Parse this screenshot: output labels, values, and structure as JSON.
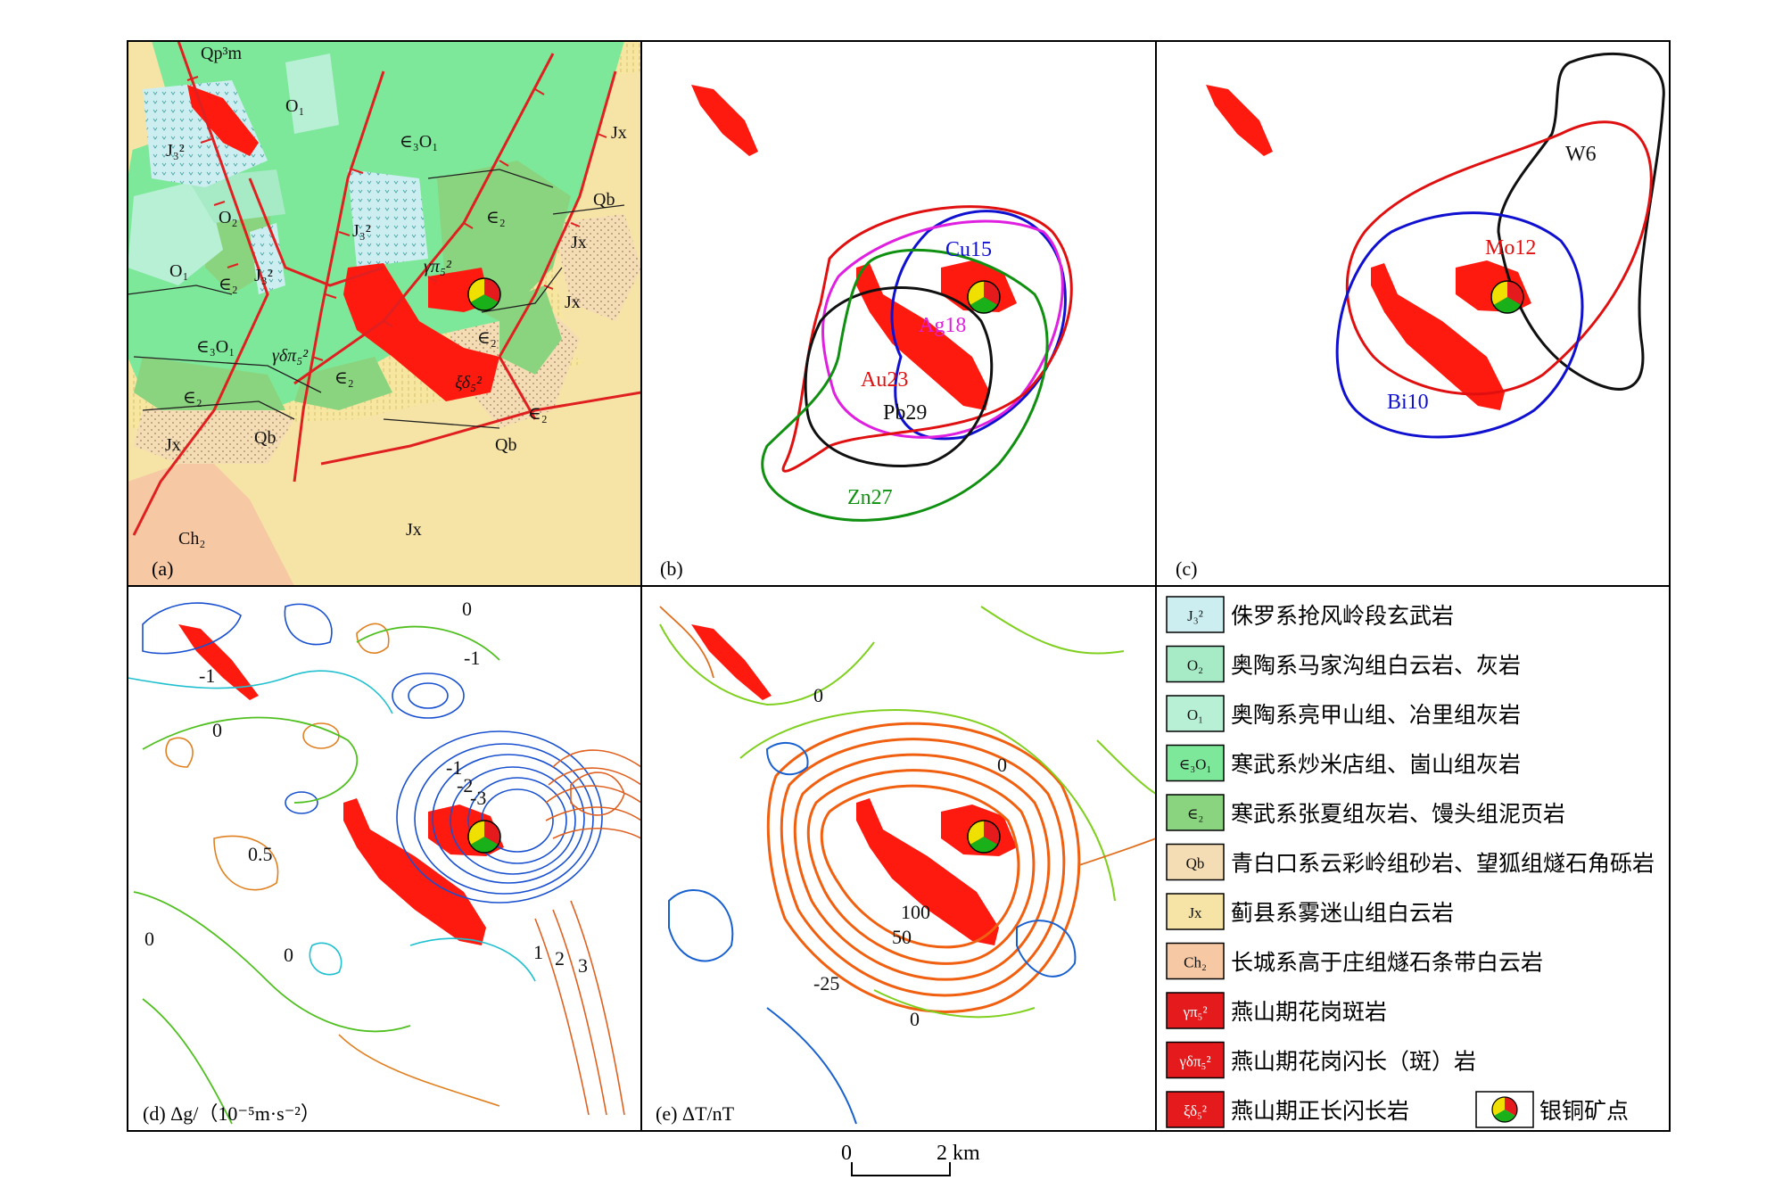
{
  "panels": {
    "a": {
      "label": "(a)"
    },
    "b": {
      "label": "(b)"
    },
    "c": {
      "label": "(c)"
    },
    "d": {
      "label": "(d) Δg/（10⁻⁵m·s⁻²）"
    },
    "e": {
      "label": "(e) ΔT/nT"
    }
  },
  "geology_units": {
    "qp3m": "Qp³m",
    "o1_top": "O₁",
    "o1_left": "O₁",
    "j32_left": "J₃²",
    "j32_mid": "J₃²",
    "j32_small": "J₃²",
    "o2": "O₂",
    "e2_mid": "∈₂",
    "e2_right": "∈₂",
    "e2_far": "∈₂",
    "e2_low": "∈₂",
    "e2_bottom": "∈₂",
    "e2_lower_right": "∈₂",
    "e2_center": "∈₂",
    "e3o1_top": "∈₃O₁",
    "e3o1_left": "∈₃O₁",
    "gamma_pi": "γπ₅²",
    "gamma_delta_pi": "γδπ₅²",
    "xi_delta": "ξδ₅²",
    "jx_top": "Jx",
    "jx_mid": "Jx",
    "jx_small": "Jx",
    "jx_left": "Jx",
    "jx_bottom": "Jx",
    "qb_top": "Qb",
    "qb_left": "Qb",
    "qb_bottom": "Qb",
    "ch2": "Ch₂"
  },
  "anomalies_b": {
    "cu": "Cu15",
    "ag": "Ag18",
    "au": "Au23",
    "pb": "Pb29",
    "zn": "Zn27"
  },
  "anomalies_c": {
    "w": "W6",
    "mo": "Mo12",
    "bi": "Bi10"
  },
  "contours_d": {
    "l0_top": "0",
    "lneg1_left": "-1",
    "lneg1_right": "-1",
    "l0_left": "0",
    "lneg1_center": "-1",
    "lneg2": "-2",
    "lneg3": "-3",
    "l05": "0.5",
    "l0_bottom": "0",
    "l0_far": "0",
    "l1": "1",
    "l2": "2",
    "l3": "3"
  },
  "contours_e": {
    "l0_top": "0",
    "l0_mid": "0",
    "l100": "100",
    "l50": "50",
    "lneg25": "-25",
    "l0_bottom": "0"
  },
  "legend": [
    {
      "symbol": "J₃²",
      "text": "侏罗系抢风岭段玄武岩",
      "color": "#cdeef0"
    },
    {
      "symbol": "O₂",
      "text": "奥陶系马家沟组白云岩、灰岩",
      "color": "#a6eac6"
    },
    {
      "symbol": "O₁",
      "text": "奥陶系亮甲山组、冶里组灰岩",
      "color": "#b8f0d6"
    },
    {
      "symbol": "∈₃O₁",
      "text": "寒武系炒米店组、崮山组灰岩",
      "color": "#7ee89a"
    },
    {
      "symbol": "∈₂",
      "text": "寒武系张夏组灰岩、馒头组泥页岩",
      "color": "#8ad47f"
    },
    {
      "symbol": "Qb",
      "text": "青白口系云彩岭组砂岩、望狐组燧石角砾岩",
      "color": "#f4dcb4"
    },
    {
      "symbol": "Jx",
      "text": "蓟县系雾迷山组白云岩",
      "color": "#f6e4a6"
    },
    {
      "symbol": "Ch₂",
      "text": "长城系高于庄组燧石条带白云岩",
      "color": "#f6c8a4"
    },
    {
      "symbol": "γπ₅²",
      "text": "燕山期花岗斑岩",
      "color": "#e41a1c"
    },
    {
      "symbol": "γδπ₅²",
      "text": "燕山期花岗闪长（斑）岩",
      "color": "#e41a1c"
    },
    {
      "symbol": "ξδ₅²",
      "text": "燕山期正长闪长岩",
      "color": "#e41a1c"
    }
  ],
  "legend_deposit": "银铜矿点",
  "scale": {
    "start": "0",
    "end": "2 km"
  },
  "colors": {
    "intrusion": "#ff1a10",
    "fault": "#e02020",
    "cu": "#1010d0",
    "ag": "#e020e0",
    "au": "#e01010",
    "pb": "#101010",
    "zn": "#109010"
  }
}
